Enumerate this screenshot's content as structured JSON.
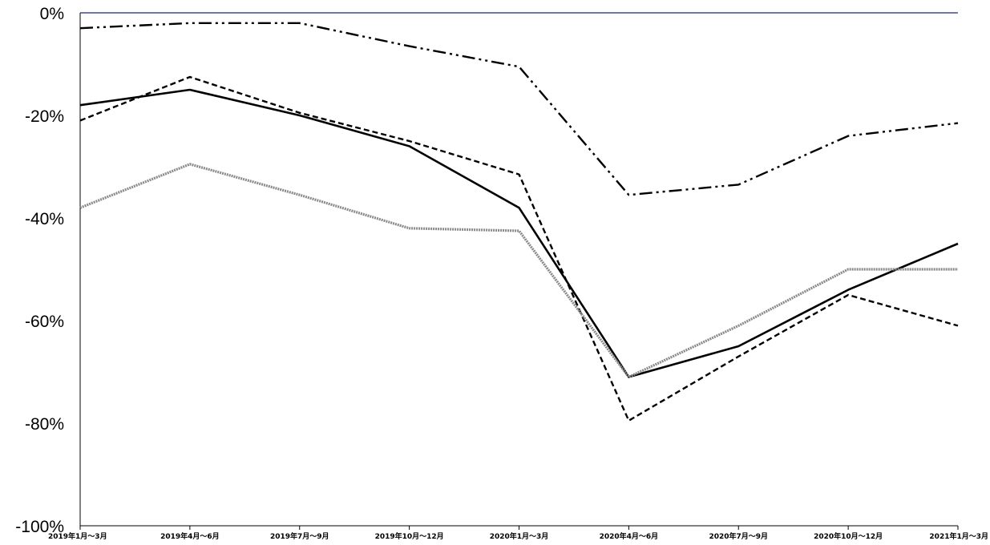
{
  "chart_data": {
    "type": "line",
    "title": "",
    "xlabel": "",
    "ylabel": "",
    "categories": [
      "2019年1月～3月",
      "2019年4月～6月",
      "2019年7月～9月",
      "2019年10月～12月",
      "2020年1月～3月",
      "2020年4月～6月",
      "2020年7月～9月",
      "2020年10月～12月",
      "2021年1月～3月"
    ],
    "y_ticks": [
      "0%",
      "-20%",
      "-40%",
      "-60%",
      "-80%",
      "-100%"
    ],
    "ylim": [
      -100,
      0
    ],
    "grid": false,
    "legend": "none",
    "reference_line": {
      "value": 0,
      "color": "#1a237e"
    },
    "series": [
      {
        "style": "solid",
        "color": "#000000",
        "values": [
          -18,
          -15,
          -20,
          -26,
          -38,
          -71,
          -65,
          -54,
          -45
        ]
      },
      {
        "style": "dashed",
        "color": "#000000",
        "values": [
          -21,
          -12.5,
          -19.5,
          -25,
          -31.5,
          -79.5,
          -67,
          -55,
          -61
        ]
      },
      {
        "style": "dash-dot-dot",
        "color": "#000000",
        "values": [
          -3,
          -2,
          -2,
          -6.5,
          -10.5,
          -35.5,
          -33.5,
          -24,
          -21.5
        ]
      },
      {
        "style": "dotted-thick",
        "color": "#8a8a8a",
        "values": [
          -38,
          -29.5,
          -35.5,
          -42,
          -42.5,
          -71,
          -61,
          -50,
          -50
        ]
      }
    ]
  }
}
